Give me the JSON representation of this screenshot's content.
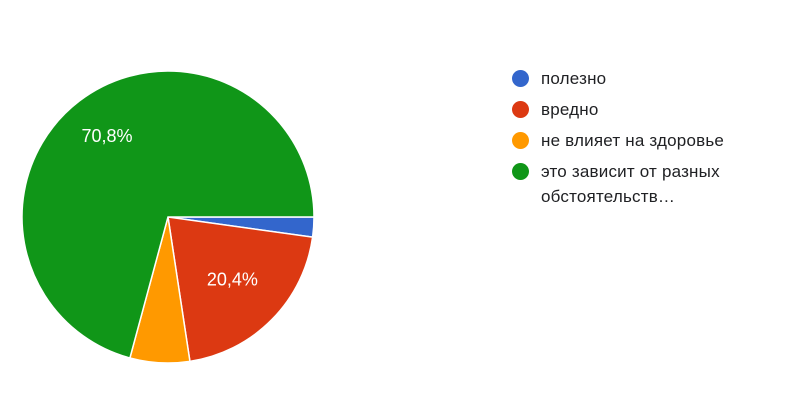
{
  "chart_data": {
    "type": "pie",
    "title": "",
    "slices": [
      {
        "label": "полезно",
        "value": 2.2,
        "color": "#3366cc"
      },
      {
        "label": "вредно",
        "value": 20.4,
        "color": "#dc3912",
        "display": "20,4%"
      },
      {
        "label": "не влияет на здоровье",
        "value": 6.6,
        "color": "#ff9900"
      },
      {
        "label": "это зависит от разных обстоятельств…",
        "value": 70.8,
        "color": "#109618",
        "display": "70,8%"
      }
    ],
    "legend_position": "right"
  },
  "legend": {
    "items": [
      {
        "label": "полезно",
        "color": "#3366cc"
      },
      {
        "label": "вредно",
        "color": "#dc3912"
      },
      {
        "label": "не влияет на здоровье",
        "color": "#ff9900"
      },
      {
        "label_line1": "это зависит от разных",
        "label_line2": "обстоятельств…",
        "color": "#109618"
      }
    ]
  }
}
